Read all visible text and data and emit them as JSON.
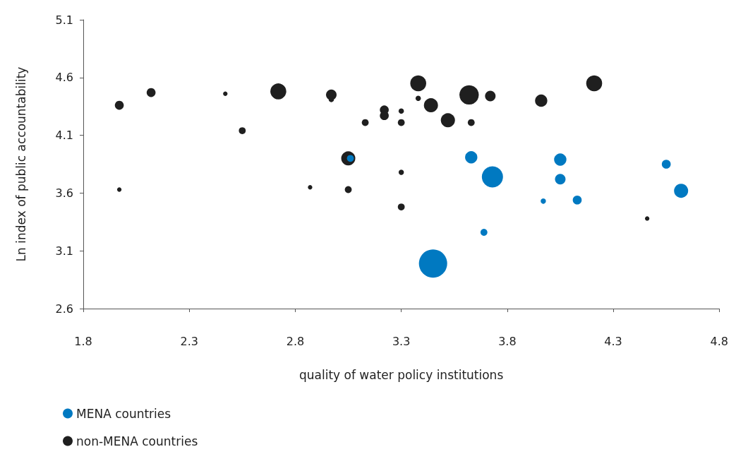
{
  "chart_data": {
    "type": "bubble",
    "xlabel": "quality of water policy institutions",
    "ylabel": "Ln index of public accountability",
    "xlim": [
      1.8,
      4.8
    ],
    "xticks": [
      1.8,
      2.3,
      2.8,
      3.3,
      3.8,
      4.3,
      4.8
    ],
    "ylim": [
      2.6,
      5.1
    ],
    "yticks": [
      2.6,
      3.1,
      3.6,
      4.1,
      4.6,
      5.1
    ],
    "grid": false,
    "legend": "bottom left",
    "marker": "circle",
    "series": [
      {
        "name": "non-MENA countries",
        "color": "#1f1f1f",
        "x": [
          1.97,
          2.12,
          2.47,
          2.72,
          2.97,
          2.97,
          2.55,
          1.97,
          2.87,
          3.05,
          3.05,
          3.13,
          3.22,
          3.22,
          3.3,
          3.3,
          3.38,
          3.38,
          3.44,
          3.52,
          3.62,
          3.63,
          3.72,
          3.96,
          4.21,
          3.3,
          3.3,
          4.46
        ],
        "values": [
          4.36,
          4.47,
          4.46,
          4.48,
          4.45,
          4.41,
          4.14,
          3.63,
          3.65,
          3.9,
          3.63,
          4.21,
          4.32,
          4.27,
          4.31,
          4.21,
          4.55,
          4.42,
          4.36,
          4.23,
          4.45,
          4.21,
          4.44,
          4.4,
          4.55,
          3.78,
          3.48,
          3.38
        ],
        "sizes": [
          0.1,
          0.1,
          0.025,
          0.32,
          0.14,
          0.035,
          0.06,
          0.025,
          0.025,
          0.25,
          0.06,
          0.06,
          0.1,
          0.1,
          0.035,
          0.06,
          0.32,
          0.035,
          0.25,
          0.25,
          0.47,
          0.06,
          0.14,
          0.19,
          0.32,
          0.035,
          0.06,
          0.025
        ]
      },
      {
        "name": "MENA countries",
        "color": "#0079c1",
        "x": [
          3.06,
          3.63,
          3.73,
          4.05,
          4.05,
          3.97,
          4.13,
          3.69,
          3.45,
          4.55,
          4.62
        ],
        "values": [
          3.9,
          3.91,
          3.74,
          3.89,
          3.72,
          3.53,
          3.54,
          3.26,
          2.99,
          3.85,
          3.62
        ],
        "sizes": [
          0.06,
          0.19,
          0.56,
          0.19,
          0.14,
          0.035,
          0.1,
          0.06,
          1,
          0.1,
          0.25
        ]
      }
    ]
  }
}
